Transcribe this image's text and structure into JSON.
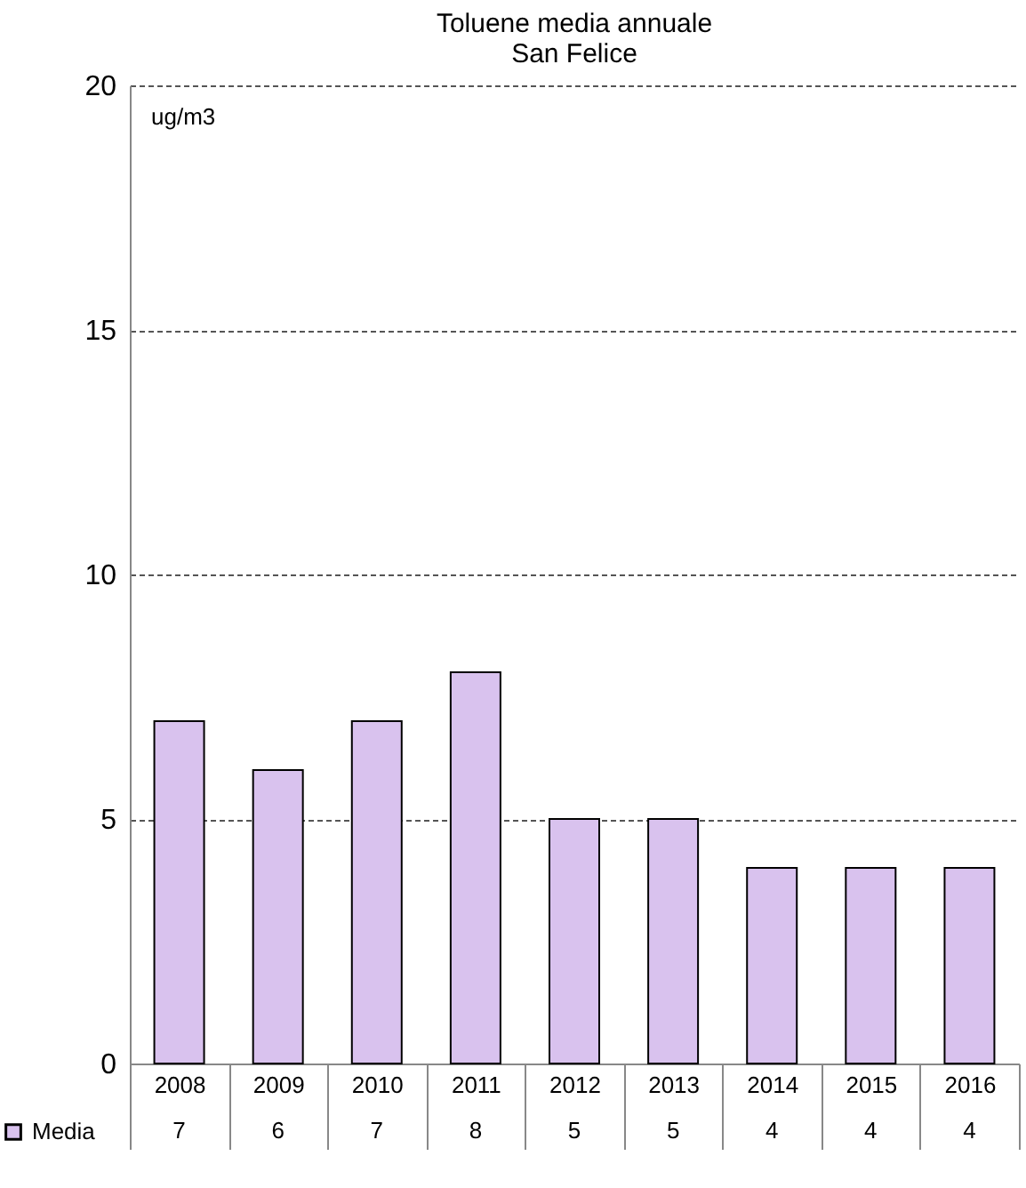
{
  "chart_data": {
    "type": "bar",
    "title": [
      "Toluene media annuale",
      "San Felice"
    ],
    "categories": [
      "2008",
      "2009",
      "2010",
      "2011",
      "2012",
      "2013",
      "2014",
      "2015",
      "2016"
    ],
    "series": [
      {
        "name": "Media",
        "color": "#d9c2ee",
        "values": [
          7,
          6,
          7,
          8,
          5,
          5,
          4,
          4,
          4
        ]
      }
    ],
    "ylim": [
      0,
      20
    ],
    "yticks": [
      0,
      5,
      10,
      15,
      20
    ],
    "grid": "y",
    "legend": "bottom left",
    "data_labels": true,
    "annotations": [
      "ug/m3"
    ]
  }
}
